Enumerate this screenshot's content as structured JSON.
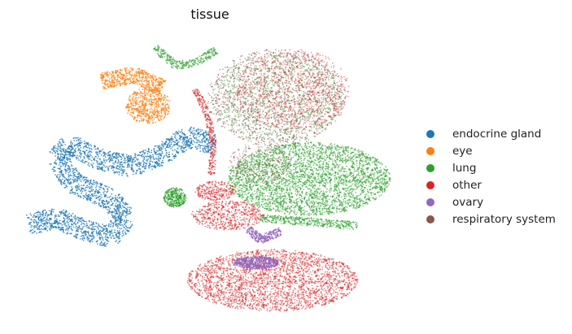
{
  "chart_data": {
    "type": "scatter",
    "title": "tissue",
    "xlabel": "",
    "ylabel": "",
    "grid": false,
    "axes_visible": false,
    "legend_position": "right",
    "series": [
      {
        "name": "endocrine gland",
        "color": "#1f77b4"
      },
      {
        "name": "eye",
        "color": "#ff7f0e"
      },
      {
        "name": "lung",
        "color": "#2ca02c"
      },
      {
        "name": "other",
        "color": "#d62728"
      },
      {
        "name": "ovary",
        "color": "#9467bd"
      },
      {
        "name": "respiratory system",
        "color": "#8c564b"
      }
    ]
  }
}
